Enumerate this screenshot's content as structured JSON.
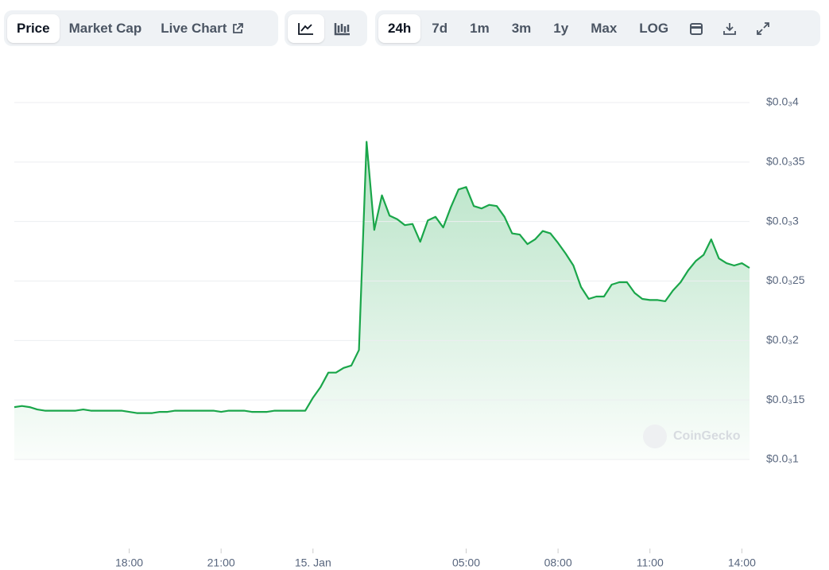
{
  "toolbar": {
    "tabs": [
      "Price",
      "Market Cap",
      "Live Chart"
    ],
    "ranges": [
      "24h",
      "7d",
      "1m",
      "3m",
      "1y",
      "Max",
      "LOG"
    ]
  },
  "chart_data": {
    "type": "area",
    "color": "#1aa64a",
    "watermark": "CoinGecko",
    "categories": [
      null,
      null,
      null,
      null,
      null,
      null,
      null,
      null,
      null,
      null,
      null,
      null,
      null,
      null,
      null,
      "18:00",
      null,
      null,
      null,
      null,
      null,
      null,
      null,
      null,
      null,
      null,
      null,
      "21:00",
      null,
      null,
      null,
      null,
      null,
      null,
      null,
      null,
      null,
      null,
      null,
      "15. Jan",
      null,
      null,
      null,
      null,
      null,
      null,
      null,
      null,
      null,
      null,
      null,
      null,
      null,
      null,
      null,
      null,
      null,
      null,
      null,
      "05:00",
      null,
      null,
      null,
      null,
      null,
      null,
      null,
      null,
      null,
      null,
      null,
      "08:00",
      null,
      null,
      null,
      null,
      null,
      null,
      null,
      null,
      null,
      null,
      null,
      "11:00",
      null,
      null,
      null,
      null,
      null,
      null,
      null,
      null,
      null,
      null,
      null,
      "14:00",
      null
    ],
    "values": [
      0.000144,
      0.000145,
      0.000144,
      0.000142,
      0.000141,
      0.000141,
      0.000141,
      0.000141,
      0.000141,
      0.000142,
      0.000141,
      0.000141,
      0.000141,
      0.000141,
      0.000141,
      0.00014,
      0.000139,
      0.000139,
      0.000139,
      0.00014,
      0.00014,
      0.000141,
      0.000141,
      0.000141,
      0.000141,
      0.000141,
      0.000141,
      0.00014,
      0.000141,
      0.000141,
      0.000141,
      0.00014,
      0.00014,
      0.00014,
      0.000141,
      0.000141,
      0.000141,
      0.000141,
      0.000141,
      0.000152,
      0.000161,
      0.000173,
      0.000173,
      0.000177,
      0.000179,
      0.000192,
      0.000367,
      0.000293,
      0.000322,
      0.000305,
      0.000302,
      0.000297,
      0.000298,
      0.000283,
      0.000301,
      0.000304,
      0.000295,
      0.000312,
      0.000327,
      0.000329,
      0.000313,
      0.000311,
      0.000314,
      0.000313,
      0.000304,
      0.00029,
      0.000289,
      0.000281,
      0.000285,
      0.000292,
      0.00029,
      0.000282,
      0.000273,
      0.000263,
      0.000245,
      0.000235,
      0.000237,
      0.000237,
      0.000247,
      0.000249,
      0.000249,
      0.00024,
      0.000235,
      0.000234,
      0.000234,
      0.000233,
      0.000242,
      0.000249,
      0.000259,
      0.000267,
      0.000272,
      0.000285,
      0.000269,
      0.000265,
      0.000263,
      0.000265,
      0.000261
    ],
    "ylim": [
      0.0001,
      0.0004
    ],
    "yticks": [
      {
        "value": 0.0001,
        "label": "$0.0₃1"
      },
      {
        "value": 0.00015,
        "label": "$0.0₃15"
      },
      {
        "value": 0.0002,
        "label": "$0.0₃2"
      },
      {
        "value": 0.00025,
        "label": "$0.0₃25"
      },
      {
        "value": 0.0003,
        "label": "$0.0₃3"
      },
      {
        "value": 0.00035,
        "label": "$0.0₃35"
      },
      {
        "value": 0.0004,
        "label": "$0.0₃4"
      }
    ],
    "grid": true
  }
}
